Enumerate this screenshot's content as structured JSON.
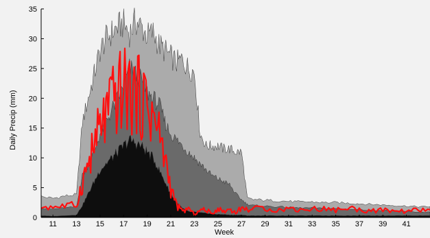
{
  "chart_data": {
    "type": "area",
    "xlabel": "Week",
    "ylabel": "Daily Precip (mm)",
    "xlim": [
      10,
      43
    ],
    "ylim": [
      0,
      35
    ],
    "x_ticks": [
      11,
      13,
      15,
      17,
      19,
      21,
      23,
      25,
      27,
      29,
      31,
      33,
      35,
      37,
      39,
      41
    ],
    "y_ticks": [
      0,
      5,
      10,
      15,
      20,
      25,
      30,
      35
    ],
    "grid": false,
    "legend": "none",
    "x": [
      10,
      11,
      12,
      13,
      13.5,
      14,
      14.5,
      15,
      15.5,
      16,
      16.5,
      17,
      17.5,
      18,
      18.5,
      19,
      19.5,
      20,
      20.5,
      21,
      21.5,
      22,
      22.5,
      23,
      23.5,
      24,
      24.5,
      25,
      25.5,
      26,
      26.5,
      27,
      27.5,
      28,
      29,
      30,
      31,
      32,
      33,
      34,
      35,
      36,
      37,
      38,
      39,
      40,
      41,
      42,
      43
    ],
    "series": [
      {
        "color": "#ababab",
        "values": [
          3.5,
          3.2,
          3.6,
          3.8,
          16,
          20,
          24,
          28,
          30,
          31,
          32,
          32.5,
          31,
          33,
          32,
          30.5,
          31,
          29,
          28,
          27,
          26,
          26.5,
          25,
          24.5,
          14,
          12,
          12,
          12,
          11.5,
          11.5,
          11,
          11,
          3.2,
          3.0,
          2.9,
          2.8,
          2.7,
          2.6,
          2.6,
          2.5,
          2.5,
          2.4,
          2.3,
          2.2,
          2.1,
          2.0,
          1.9,
          1.8,
          1.8
        ]
      },
      {
        "color": "#6a6a6a",
        "values": [
          1.5,
          1.4,
          1.6,
          1.8,
          7,
          9,
          11,
          14,
          16,
          18,
          20,
          22,
          25,
          24,
          23,
          21,
          20,
          19,
          16,
          14,
          13,
          12,
          11,
          10,
          9,
          8,
          7,
          6.5,
          6,
          5.5,
          4,
          3,
          2.2,
          2.0,
          1.9,
          1.8,
          1.7,
          1.6,
          1.6,
          1.5,
          1.5,
          1.4,
          1.3,
          1.2,
          1.2,
          1.1,
          1.0,
          0.9,
          0.9
        ]
      },
      {
        "color": "#0e0e0e",
        "values": [
          0.3,
          0.2,
          0.3,
          0.4,
          2,
          4,
          6,
          8,
          9,
          10,
          11,
          12,
          13,
          12.5,
          12,
          11,
          10,
          8,
          6,
          4,
          2.5,
          1.5,
          1.0,
          0.9,
          0.8,
          0.7,
          0.6,
          0.5,
          0.5,
          0.4,
          0.4,
          0.4,
          0.3,
          0.3,
          0.3,
          0.3,
          0.3,
          0.3,
          0.3,
          0.3,
          0.3,
          0.3,
          0.3,
          0.3,
          0.3,
          0.3,
          0.3,
          0.3,
          0.3
        ]
      },
      {
        "color": "#ff1010",
        "values": [
          1.8,
          1.8,
          1.9,
          2.0,
          6,
          9,
          12,
          15,
          17,
          19,
          20.5,
          21.5,
          21,
          20.5,
          20,
          19,
          17,
          14,
          10,
          5,
          2,
          1.0,
          1.5,
          0.5,
          1.2,
          1.3,
          0.6,
          1.5,
          1.0,
          1.4,
          0.8,
          1.6,
          1.3,
          1.4,
          1.6,
          1.2,
          1.5,
          1.3,
          1.4,
          1.5,
          1.2,
          1.6,
          1.3,
          1.1,
          1.2,
          1.0,
          1.1,
          1.2,
          1.3
        ]
      }
    ]
  }
}
